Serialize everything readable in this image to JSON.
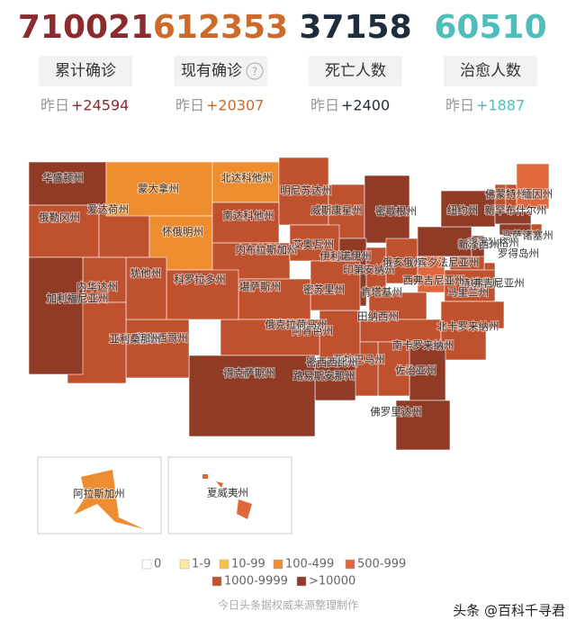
{
  "stats": [
    {
      "value": "710021",
      "label": "累计确诊",
      "yesterday": "昨日",
      "delta": "+24594",
      "color": "#8b2b2e"
    },
    {
      "value": "612353",
      "label": "现有确诊",
      "help": "?",
      "yesterday": "昨日",
      "delta": "+20307",
      "color": "#cc6a2c"
    },
    {
      "value": "37158",
      "label": "死亡人数",
      "yesterday": "昨日",
      "delta": "+2400",
      "color": "#1f2d3d"
    },
    {
      "value": "60510",
      "label": "治愈人数",
      "yesterday": "昨日",
      "delta": "+1887",
      "color": "#4fbdb9"
    }
  ],
  "map": {
    "states": [
      {
        "name": "华盛顿州",
        "color": "#8f3b26"
      },
      {
        "name": "俄勒冈州",
        "color": "#bf512e"
      },
      {
        "name": "爱达荷州",
        "color": "#bf512e"
      },
      {
        "name": "蒙大拿州",
        "color": "#ee8c30"
      },
      {
        "name": "怀俄明州",
        "color": "#ee8c30"
      },
      {
        "name": "北达科他州",
        "color": "#ee8c30"
      },
      {
        "name": "南达科他州",
        "color": "#bf512e"
      },
      {
        "name": "内布拉斯加州",
        "color": "#bf512e"
      },
      {
        "name": "明尼苏达州",
        "color": "#bf512e"
      },
      {
        "name": "威斯康星州",
        "color": "#bf512e"
      },
      {
        "name": "密歇根州",
        "color": "#8f3b26"
      },
      {
        "name": "艾奥瓦州",
        "color": "#bf512e"
      },
      {
        "name": "伊利诺伊州",
        "color": "#8f3b26"
      },
      {
        "name": "印第安纳州",
        "color": "#bf512e"
      },
      {
        "name": "俄亥俄州",
        "color": "#bf512e"
      },
      {
        "name": "宾夕法尼亚州",
        "color": "#8f3b26"
      },
      {
        "name": "纽约州",
        "color": "#8f3b26"
      },
      {
        "name": "佛蒙特州",
        "color": "#bf512e"
      },
      {
        "name": "新罕布什尔州",
        "color": "#bf512e"
      },
      {
        "name": "缅因州",
        "color": "#e0673c"
      },
      {
        "name": "马萨诸塞州",
        "color": "#8f3b26"
      },
      {
        "name": "罗得岛州",
        "color": "#bf512e"
      },
      {
        "name": "康涅狄格州",
        "color": "#8f3b26"
      },
      {
        "name": "新泽西州",
        "color": "#8f3b26"
      },
      {
        "name": "特拉华州",
        "color": "#bf512e"
      },
      {
        "name": "马里兰州",
        "color": "#bf512e"
      },
      {
        "name": "西弗吉尼亚州",
        "color": "#e0673c"
      },
      {
        "name": "弗吉尼亚州",
        "color": "#bf512e"
      },
      {
        "name": "肯塔基州",
        "color": "#bf512e"
      },
      {
        "name": "田纳西州",
        "color": "#bf512e"
      },
      {
        "name": "北卡罗来纳州",
        "color": "#bf512e"
      },
      {
        "name": "南卡罗来纳州",
        "color": "#bf512e"
      },
      {
        "name": "佐治亚州",
        "color": "#8f3b26"
      },
      {
        "name": "亚拉巴马州",
        "color": "#bf512e"
      },
      {
        "name": "密西西比州",
        "color": "#bf512e"
      },
      {
        "name": "佛罗里达州",
        "color": "#8f3b26"
      },
      {
        "name": "路易斯安那州",
        "color": "#8f3b26"
      },
      {
        "name": "阿肯色州",
        "color": "#bf512e"
      },
      {
        "name": "密苏里州",
        "color": "#bf512e"
      },
      {
        "name": "堪萨斯州",
        "color": "#bf512e"
      },
      {
        "name": "俄克拉荷马州",
        "color": "#bf512e"
      },
      {
        "name": "得克萨斯州",
        "color": "#8f3b26"
      },
      {
        "name": "新墨西哥州",
        "color": "#bf512e"
      },
      {
        "name": "科罗拉多州",
        "color": "#bf512e"
      },
      {
        "name": "犹他州",
        "color": "#bf512e"
      },
      {
        "name": "内华达州",
        "color": "#bf512e"
      },
      {
        "name": "亚利桑那州",
        "color": "#bf512e"
      },
      {
        "name": "加利福尼亚州",
        "color": "#8f3b26"
      },
      {
        "name": "阿拉斯加州",
        "color": "#ee8c30"
      },
      {
        "name": "夏威夷州",
        "color": "#e0673c"
      }
    ],
    "legend": [
      {
        "label": "0",
        "color": "#ffffff"
      },
      {
        "label": "1-9",
        "color": "#fbeaa0"
      },
      {
        "label": "10-99",
        "color": "#f5c14a"
      },
      {
        "label": "100-499",
        "color": "#ee8c30"
      },
      {
        "label": "500-999",
        "color": "#e0673c"
      },
      {
        "label": "1000-9999",
        "color": "#bf512e"
      },
      {
        "label": ">10000",
        "color": "#8f3b26"
      }
    ]
  },
  "footer": "今日头条据权威来源整理制作",
  "watermark": "头条 @百科千寻君"
}
